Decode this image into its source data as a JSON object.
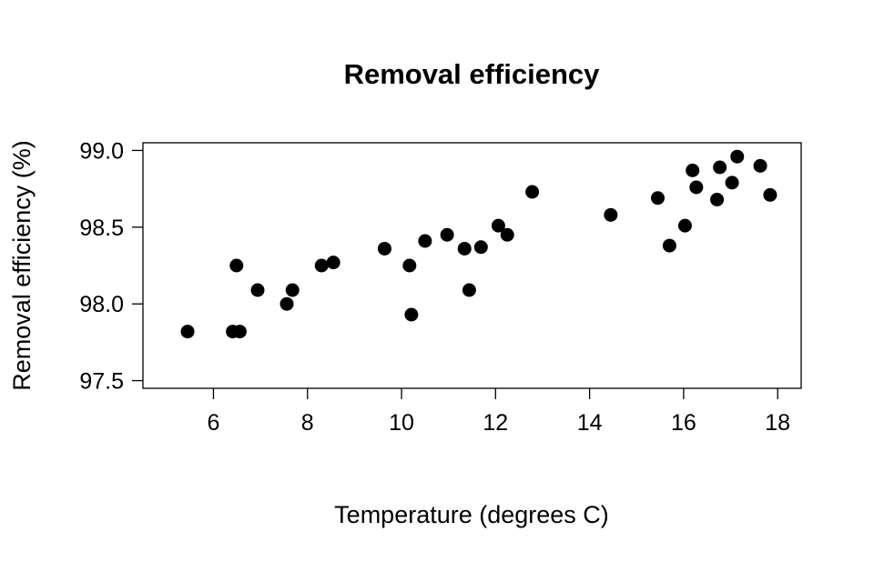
{
  "chart_data": {
    "type": "scatter",
    "title": "Removal efficiency",
    "xlabel": "Temperature (degrees C)",
    "ylabel": "Removal efficiency (%)",
    "xlim": [
      4.5,
      18.5
    ],
    "ylim": [
      97.45,
      99.05
    ],
    "x_ticks": [
      "6",
      "8",
      "10",
      "12",
      "14",
      "16",
      "18"
    ],
    "y_ticks": [
      "97.5",
      "98.0",
      "98.5",
      "99.0"
    ],
    "grid": false,
    "legend": "none",
    "marker_color": "#000000",
    "points": [
      [
        5.45,
        97.82
      ],
      [
        6.41,
        97.82
      ],
      [
        6.56,
        97.82
      ],
      [
        6.49,
        98.25
      ],
      [
        6.94,
        98.09
      ],
      [
        7.56,
        98.0
      ],
      [
        7.68,
        98.09
      ],
      [
        8.3,
        98.25
      ],
      [
        8.55,
        98.27
      ],
      [
        9.64,
        98.36
      ],
      [
        10.17,
        98.25
      ],
      [
        10.21,
        97.93
      ],
      [
        10.5,
        98.41
      ],
      [
        10.97,
        98.45
      ],
      [
        11.34,
        98.36
      ],
      [
        11.44,
        98.09
      ],
      [
        11.69,
        98.37
      ],
      [
        12.06,
        98.51
      ],
      [
        12.25,
        98.45
      ],
      [
        12.78,
        98.73
      ],
      [
        14.45,
        98.58
      ],
      [
        15.45,
        98.69
      ],
      [
        15.7,
        98.38
      ],
      [
        16.03,
        98.51
      ],
      [
        16.19,
        98.87
      ],
      [
        16.27,
        98.76
      ],
      [
        16.71,
        98.68
      ],
      [
        16.77,
        98.89
      ],
      [
        17.03,
        98.79
      ],
      [
        17.14,
        98.96
      ],
      [
        17.63,
        98.9
      ],
      [
        17.84,
        98.71
      ]
    ]
  }
}
